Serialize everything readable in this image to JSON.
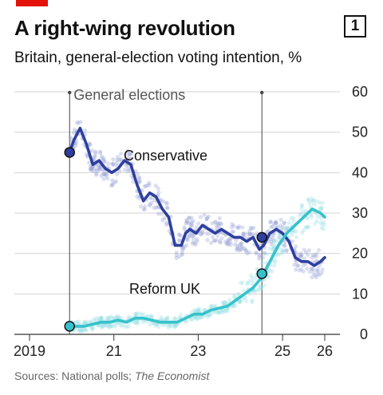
{
  "badge": "1",
  "chart_data": {
    "type": "line",
    "title": "A right-wing revolution",
    "subtitle": "Britain, general-election voting intention, %",
    "ylim": [
      0,
      60
    ],
    "yticks": [
      0,
      10,
      20,
      30,
      40,
      50,
      60
    ],
    "xlim": [
      2018.85,
      2026.15
    ],
    "xticks": [
      {
        "value": 2019.0,
        "label": "2019"
      },
      {
        "value": 2021.0,
        "label": "21"
      },
      {
        "value": 2023.0,
        "label": "23"
      },
      {
        "value": 2025.0,
        "label": "25"
      },
      {
        "value": 2026.0,
        "label": "26"
      }
    ],
    "grid": true,
    "annotation_label": "General elections",
    "elections": [
      {
        "x": 2019.95,
        "conservative": 45,
        "reform": 2
      },
      {
        "x": 2024.51,
        "conservative": 24,
        "reform": 15
      }
    ],
    "series": [
      {
        "name": "Conservative",
        "color": "#2e3f9e",
        "x": [
          2019.95,
          2020.05,
          2020.2,
          2020.35,
          2020.5,
          2020.65,
          2020.8,
          2020.95,
          2021.1,
          2021.25,
          2021.4,
          2021.55,
          2021.7,
          2021.85,
          2022.0,
          2022.15,
          2022.3,
          2022.45,
          2022.6,
          2022.7,
          2022.8,
          2022.95,
          2023.1,
          2023.25,
          2023.4,
          2023.55,
          2023.7,
          2023.85,
          2024.0,
          2024.15,
          2024.3,
          2024.45,
          2024.55,
          2024.7,
          2024.85,
          2025.0,
          2025.15,
          2025.3,
          2025.45,
          2025.6,
          2025.75,
          2025.9,
          2026.0
        ],
        "values": [
          45,
          48,
          51,
          47,
          42,
          43,
          41,
          40,
          41,
          43,
          42,
          37,
          33,
          35,
          34,
          31,
          29,
          22,
          22,
          25,
          26,
          25,
          27,
          26,
          25,
          26,
          25,
          24,
          24,
          23,
          24,
          21,
          22,
          25,
          26,
          25,
          23,
          19,
          18,
          18,
          17,
          18,
          19
        ]
      },
      {
        "name": "Reform UK",
        "color": "#36c2cc",
        "x": [
          2019.95,
          2020.1,
          2020.3,
          2020.5,
          2020.7,
          2020.9,
          2021.1,
          2021.3,
          2021.5,
          2021.7,
          2021.9,
          2022.1,
          2022.3,
          2022.5,
          2022.7,
          2022.9,
          2023.1,
          2023.3,
          2023.5,
          2023.7,
          2023.9,
          2024.1,
          2024.3,
          2024.5,
          2024.7,
          2024.9,
          2025.1,
          2025.3,
          2025.5,
          2025.7,
          2025.9,
          2026.0
        ],
        "values": [
          2,
          2,
          2,
          2.5,
          3,
          3,
          3.5,
          3,
          4,
          4,
          3.5,
          3,
          3,
          3,
          4,
          5,
          5,
          6,
          6.5,
          7,
          8.5,
          10,
          11.5,
          14,
          18,
          22,
          25,
          27,
          29,
          31,
          30,
          29
        ]
      }
    ]
  },
  "source": {
    "prefix": "Sources: National polls; ",
    "italic": "The Economist"
  }
}
